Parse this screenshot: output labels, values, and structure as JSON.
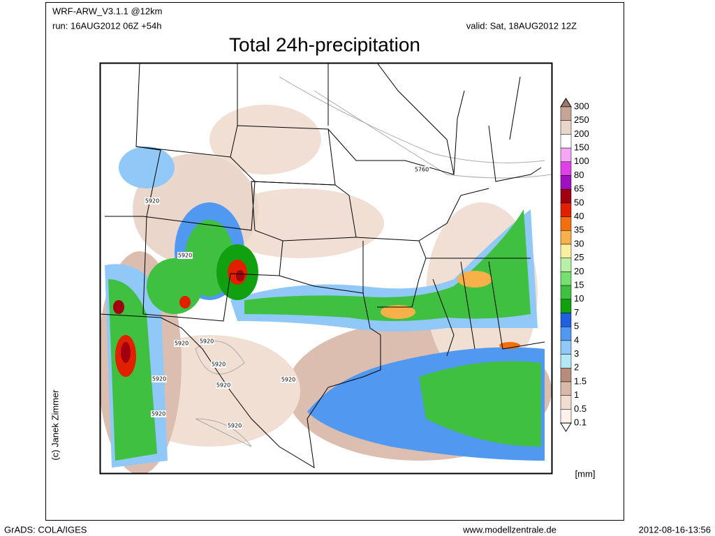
{
  "header": {
    "model": "WRF-ARW_V3.1.1 @12km",
    "run": "run: 16AUG2012 06Z +54h",
    "valid": "valid: Sat, 18AUG2012 12Z",
    "title": "Total 24h-precipitation"
  },
  "map": {
    "contour_labels": [
      "5760",
      "5920",
      "5920",
      "5920",
      "5920",
      "5920",
      "5920",
      "5920",
      "5920",
      "5920",
      "5920"
    ]
  },
  "legend": {
    "levels": [
      "300",
      "250",
      "200",
      "150",
      "100",
      "80",
      "65",
      "50",
      "40",
      "35",
      "30",
      "25",
      "20",
      "15",
      "10",
      "7",
      "5",
      "4",
      "3",
      "2",
      "1.5",
      "1",
      "0.5",
      "0.1"
    ],
    "colors": [
      "#a07868",
      "#c8a496",
      "#e8d6cc",
      "#ffffff",
      "#f4a8f4",
      "#e040e8",
      "#a010c0",
      "#a00010",
      "#e02000",
      "#f07010",
      "#f8b048",
      "#f8f0a0",
      "#b8f0a8",
      "#78e070",
      "#40c040",
      "#10a010",
      "#2060e0",
      "#5098f0",
      "#90c8f8",
      "#b4e8f4",
      "#b88c7c",
      "#d8b8a8",
      "#f0dcd0",
      "#fff2ea",
      "#ffffff"
    ],
    "unit": "[mm]"
  },
  "credit": "(c) Janek Zimmer",
  "footer": {
    "left": "GrADS: COLA/IGES",
    "center": "www.modellzentrale.de",
    "right": "2012-08-16-13:56"
  }
}
